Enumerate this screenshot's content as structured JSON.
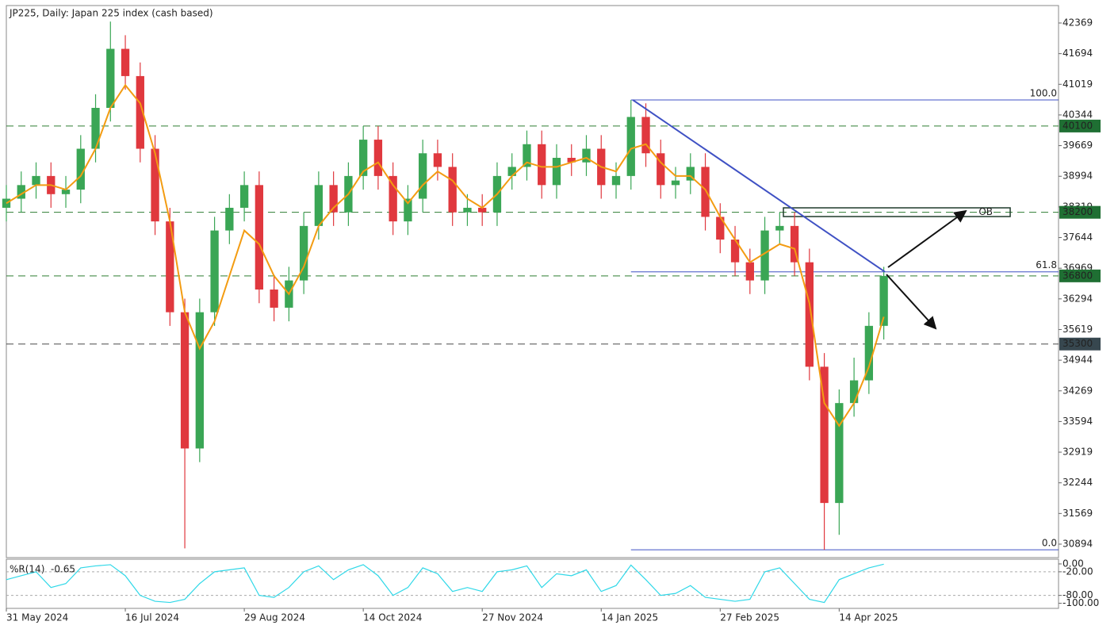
{
  "chart_data": {
    "type": "candlestick",
    "title": "JP225, Daily:  Japan 225 index (cash based)",
    "xlim": [
      0,
      283
    ],
    "xticks": [
      {
        "value": 0,
        "label": "31 May 2024"
      },
      {
        "value": 32,
        "label": "16 Jul 2024"
      },
      {
        "value": 64,
        "label": "29 Aug 2024"
      },
      {
        "value": 96,
        "label": "14 Oct 2024"
      },
      {
        "value": 128,
        "label": "27 Nov 2024"
      },
      {
        "value": 160,
        "label": "14 Jan 2025"
      },
      {
        "value": 192,
        "label": "27 Feb 2025"
      },
      {
        "value": 224,
        "label": "14 Apr 2025"
      }
    ],
    "ylim": [
      30597,
      42753
    ],
    "yticks": [
      42369,
      41694,
      41019,
      40344,
      39669,
      38994,
      38319,
      37644,
      36969,
      36294,
      35619,
      34944,
      34269,
      33594,
      32919,
      32244,
      31569,
      30894
    ],
    "up_color": "#3aa655",
    "down_color": "#e0383e",
    "x": [
      0,
      4,
      8,
      12,
      16,
      20,
      24,
      28,
      32,
      36,
      40,
      44,
      48,
      52,
      56,
      60,
      64,
      68,
      72,
      76,
      80,
      84,
      88,
      92,
      96,
      100,
      104,
      108,
      112,
      116,
      120,
      124,
      128,
      132,
      136,
      140,
      144,
      148,
      152,
      156,
      160,
      164,
      168,
      172,
      176,
      180,
      184,
      188,
      192,
      196,
      200,
      204,
      208,
      212,
      216,
      220,
      224,
      228,
      232,
      236
    ],
    "open": [
      38300,
      38500,
      38800,
      39000,
      38600,
      38700,
      39600,
      40500,
      41800,
      41200,
      39600,
      38000,
      36000,
      33000,
      36000,
      37800,
      38300,
      38800,
      36500,
      36100,
      36700,
      37900,
      38800,
      38200,
      39000,
      39800,
      39000,
      38000,
      38500,
      39500,
      39200,
      38200,
      38300,
      38200,
      39000,
      39200,
      39700,
      38800,
      39400,
      39300,
      39600,
      38800,
      39000,
      40300,
      39500,
      38800,
      38900,
      39200,
      38100,
      37600,
      37100,
      36700,
      37800,
      37900,
      37100,
      34800,
      31800,
      34000,
      34500,
      35700
    ],
    "high": [
      38800,
      39100,
      39300,
      39300,
      39000,
      39900,
      40800,
      42400,
      42100,
      41500,
      39900,
      38300,
      36300,
      36300,
      38100,
      38600,
      39100,
      39100,
      36800,
      37000,
      38200,
      39100,
      39100,
      39300,
      40100,
      40100,
      39300,
      38800,
      39800,
      39800,
      39500,
      38600,
      38600,
      39300,
      39500,
      40000,
      40000,
      39700,
      39700,
      39900,
      39900,
      39300,
      40674,
      40600,
      39800,
      39200,
      39500,
      39500,
      38400,
      37900,
      37400,
      38100,
      38200,
      38200,
      37400,
      35100,
      34300,
      35000,
      36000,
      37000
    ],
    "low": [
      38000,
      38200,
      38500,
      38300,
      38300,
      38400,
      39300,
      40200,
      40900,
      39300,
      37700,
      35700,
      30800,
      32700,
      35700,
      37500,
      38000,
      36200,
      35800,
      35800,
      36400,
      37600,
      37900,
      37900,
      38700,
      38700,
      37700,
      37700,
      38200,
      38900,
      37900,
      37900,
      37900,
      37900,
      38700,
      38900,
      38500,
      38500,
      39000,
      39000,
      38500,
      38500,
      38700,
      39200,
      38500,
      38500,
      38600,
      37800,
      37300,
      36800,
      36400,
      36400,
      37500,
      36800,
      34500,
      30769,
      31100,
      33700,
      34200,
      35400
    ],
    "close": [
      38500,
      38800,
      39000,
      38600,
      38700,
      39600,
      40500,
      41800,
      41200,
      39600,
      38000,
      36000,
      33000,
      36000,
      37800,
      38300,
      38800,
      36500,
      36100,
      36700,
      37900,
      38800,
      38200,
      39000,
      39800,
      39000,
      38000,
      38500,
      39500,
      39200,
      38200,
      38300,
      38200,
      39000,
      39200,
      39700,
      38800,
      39400,
      39300,
      39600,
      38800,
      39000,
      40300,
      39500,
      38800,
      38900,
      39200,
      38100,
      37600,
      37100,
      36700,
      37800,
      37900,
      37100,
      34800,
      31800,
      34000,
      34500,
      35700,
      36800
    ],
    "ma": {
      "color": "#f39c12",
      "values": [
        38400,
        38600,
        38800,
        38800,
        38700,
        39000,
        39600,
        40500,
        41000,
        40600,
        39500,
        38000,
        36000,
        35200,
        35800,
        36800,
        37800,
        37500,
        36800,
        36400,
        37000,
        37900,
        38300,
        38600,
        39100,
        39300,
        38800,
        38400,
        38800,
        39100,
        38900,
        38500,
        38300,
        38600,
        39000,
        39300,
        39200,
        39200,
        39300,
        39400,
        39200,
        39100,
        39600,
        39700,
        39300,
        39000,
        39000,
        38700,
        38100,
        37600,
        37100,
        37300,
        37500,
        37400,
        36200,
        34000,
        33500,
        34000,
        34800,
        35900
      ]
    },
    "levels": [
      {
        "value": 40100,
        "color": "#2e7d32",
        "label_bg": "#1f6f33"
      },
      {
        "value": 38200,
        "color": "#2e7d32",
        "label_bg": "#1f6f33"
      },
      {
        "value": 36800,
        "color": "#2e7d32",
        "label_bg": "#1f6f33"
      },
      {
        "value": 35300,
        "color": "#4a4a4a",
        "label_bg": "#37474f"
      }
    ],
    "fib": {
      "color": "#3f51c4",
      "start_x": 168,
      "levels": [
        {
          "value": 40674,
          "label": "100.0"
        },
        {
          "value": 36890,
          "label": "61.8"
        },
        {
          "value": 30769,
          "label": "0.0"
        }
      ]
    },
    "trendline": {
      "color": "#3f51c4",
      "x": [
        168.5,
        236.3
      ],
      "y": [
        40674,
        36890
      ]
    },
    "zone": {
      "label": "OB",
      "x": [
        209,
        270
      ],
      "top": 38299,
      "bottom": 38107
    },
    "indicator": {
      "label": "%R(14)",
      "color": "#2fd8e8",
      "ylim": [
        -113,
        12
      ],
      "yticks": [
        {
          "value": 0,
          "label": "0.00"
        },
        {
          "value": -20,
          "label": "-20.00"
        },
        {
          "value": -80,
          "label": "-80.00"
        },
        {
          "value": -100,
          "label": "-100.00"
        }
      ],
      "levels": [
        -20,
        -80
      ],
      "values": [
        -40,
        -30,
        -20,
        -60,
        -50,
        -10,
        -5,
        -2,
        -30,
        -80,
        -95,
        -98,
        -90,
        -50,
        -20,
        -15,
        -10,
        -80,
        -85,
        -60,
        -20,
        -5,
        -40,
        -15,
        -2,
        -30,
        -80,
        -60,
        -10,
        -25,
        -70,
        -60,
        -70,
        -20,
        -15,
        -5,
        -60,
        -25,
        -30,
        -15,
        -70,
        -55,
        -3,
        -40,
        -80,
        -75,
        -55,
        -85,
        -90,
        -95,
        -90,
        -20,
        -10,
        -50,
        -90,
        -98,
        -40,
        -25,
        -10,
        -0.65
      ]
    }
  }
}
